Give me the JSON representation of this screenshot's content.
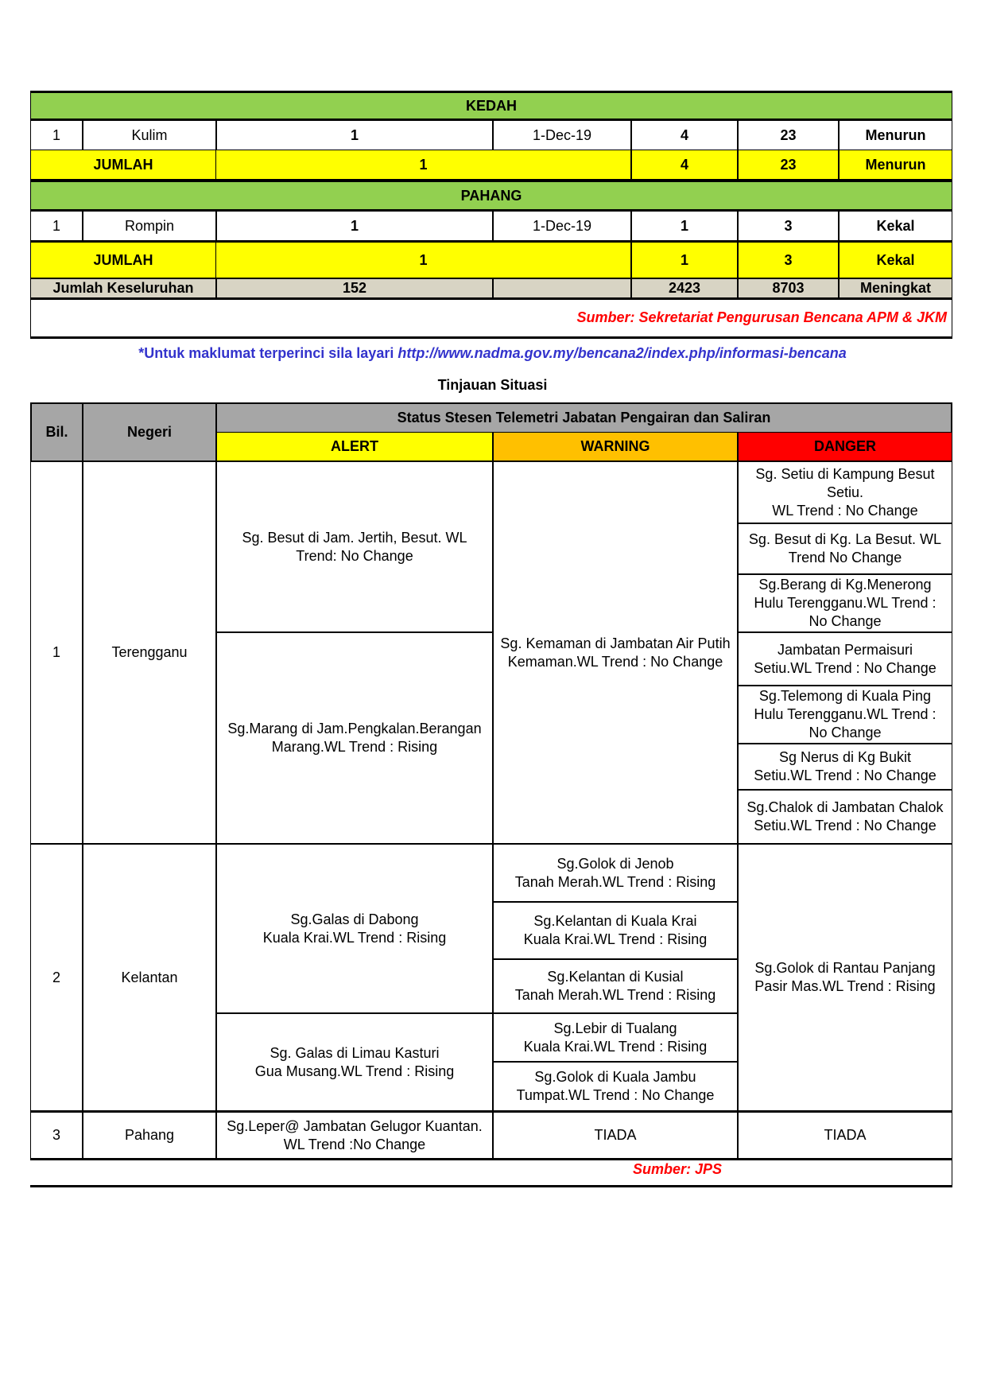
{
  "summary_table": {
    "kedah": {
      "header": "KEDAH",
      "row": {
        "bil": "1",
        "district": "Kulim",
        "count": "1",
        "date": "1-Dec-19",
        "families": "4",
        "victims": "23",
        "trend": "Menurun"
      },
      "total": {
        "label": "JUMLAH",
        "count": "1",
        "families": "4",
        "victims": "23",
        "trend": "Menurun"
      }
    },
    "pahang": {
      "header": "PAHANG",
      "row": {
        "bil": "1",
        "district": "Rompin",
        "count": "1",
        "date": "1-Dec-19",
        "families": "1",
        "victims": "3",
        "trend": "Kekal"
      },
      "total": {
        "label": "JUMLAH",
        "count": "1",
        "families": "1",
        "victims": "3",
        "trend": "Kekal"
      }
    },
    "grand_total": {
      "label": "Jumlah Keseluruhan",
      "count": "152",
      "date": "",
      "families": "2423",
      "victims": "8703",
      "trend": "Meningkat"
    },
    "source": "Sumber: Sekretariat Pengurusan Bencana APM & JKM"
  },
  "info_note": {
    "prefix": "*Untuk maklumat terperinci sila layari ",
    "url": "http://www.nadma.gov.my/bencana2/index.php/informasi-bencana"
  },
  "situation": {
    "title": "Tinjauan Situasi",
    "headers": {
      "bil": "Bil.",
      "negeri": "Negeri",
      "status": "Status Stesen Telemetri Jabatan Pengairan dan Saliran",
      "alert": "ALERT",
      "warning": "WARNING",
      "danger": "DANGER"
    },
    "colors": {
      "alert": "#ffff00",
      "warning": "#ffc000",
      "danger": "#ff0000"
    },
    "rows": [
      {
        "bil": "1",
        "negeri": "Terengganu",
        "alert": [
          "Sg. Besut di Jam. Jertih, Besut. WL\nTrend: No Change",
          "Sg.Marang di Jam.Pengkalan.Berangan\nMarang.WL Trend : Rising"
        ],
        "warning": [
          "Sg. Kemaman di Jambatan Air Putih\nKemaman.WL Trend : No Change"
        ],
        "danger": [
          "Sg. Setiu di Kampung Besut\nSetiu.\nWL Trend : No Change",
          "Sg. Besut di Kg. La Besut. WL\nTrend No Change",
          "Sg.Berang di Kg.Menerong\nHulu Terengganu.WL Trend :\nNo Change",
          "Jambatan Permaisuri\nSetiu.WL Trend : No Change",
          "Sg.Telemong di Kuala Ping\nHulu Terengganu.WL Trend :\nNo Change",
          "Sg Nerus di Kg Bukit\nSetiu.WL Trend : No Change",
          "Sg.Chalok di Jambatan Chalok\nSetiu.WL Trend : No Change"
        ]
      },
      {
        "bil": "2",
        "negeri": "Kelantan",
        "alert": [
          "Sg.Galas di Dabong\nKuala Krai.WL Trend : Rising",
          "Sg. Galas di Limau Kasturi\nGua Musang.WL Trend : Rising"
        ],
        "warning": [
          "Sg.Golok di Jenob\nTanah Merah.WL Trend : Rising",
          "Sg.Kelantan di Kuala Krai\nKuala Krai.WL Trend : Rising",
          "Sg.Kelantan di Kusial\nTanah Merah.WL Trend : Rising",
          "Sg.Lebir di Tualang\nKuala Krai.WL Trend : Rising",
          "Sg.Golok di Kuala Jambu\nTumpat.WL Trend : No Change"
        ],
        "danger": [
          "Sg.Golok di Rantau Panjang\nPasir Mas.WL Trend : Rising"
        ]
      },
      {
        "bil": "3",
        "negeri": "Pahang",
        "alert": [
          "Sg.Leper@ Jambatan Gelugor Kuantan.\nWL Trend  :No Change"
        ],
        "warning": [
          "TIADA"
        ],
        "danger": [
          "TIADA"
        ]
      }
    ],
    "source": "Sumber: JPS"
  }
}
